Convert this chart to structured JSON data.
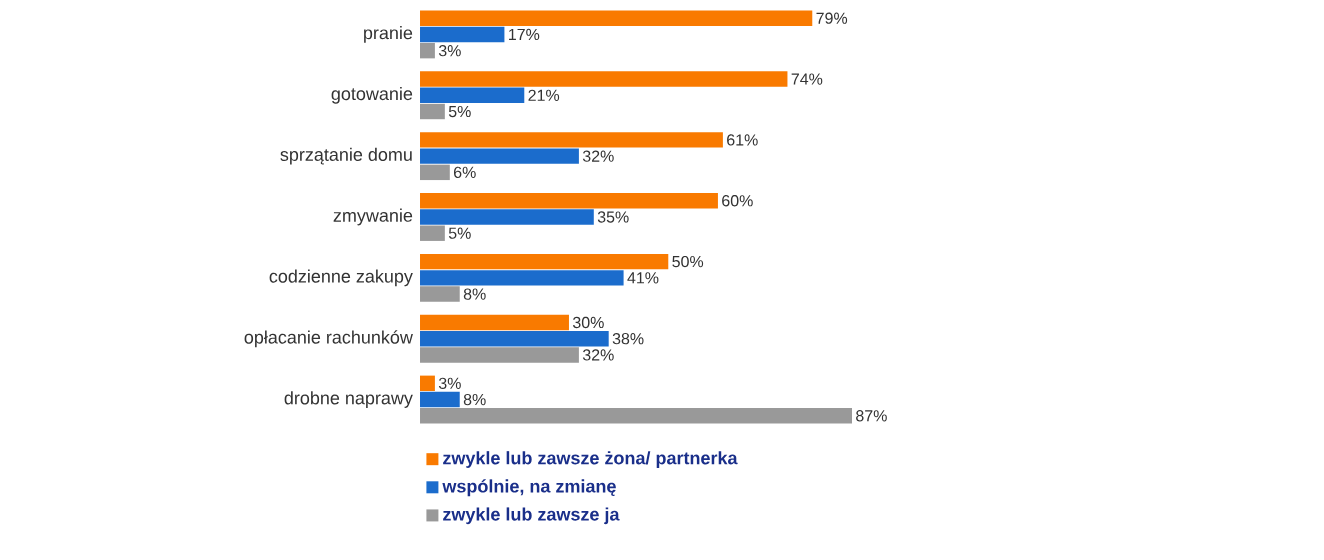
{
  "chart_data": {
    "type": "bar",
    "orientation": "horizontal",
    "categories": [
      "pranie",
      "gotowanie",
      "sprzątanie domu",
      "zmywanie",
      "codzienne zakupy",
      "opłacanie rachunków",
      "drobne naprawy"
    ],
    "series": [
      {
        "name": "zwykle lub zawsze żona/ partnerka",
        "color": "#f97a00",
        "values": [
          79,
          74,
          61,
          60,
          50,
          30,
          3
        ],
        "value_labels": [
          "79%",
          "74%",
          "61%",
          "60%",
          "50%",
          "30%",
          "3%"
        ]
      },
      {
        "name": "wspólnie, na zmianę",
        "color": "#1b6ccc",
        "values": [
          17,
          21,
          32,
          35,
          41,
          38,
          8
        ],
        "value_labels": [
          "17%",
          "21%",
          "32%",
          "35%",
          "41%",
          "38%",
          "8%"
        ]
      },
      {
        "name": "zwykle lub zawsze ja",
        "color": "#999999",
        "values": [
          3,
          5,
          6,
          5,
          8,
          32,
          87
        ],
        "value_labels": [
          "3%",
          "5%",
          "6%",
          "5%",
          "8%",
          "32%",
          "87%"
        ]
      }
    ],
    "tick_labels": "y",
    "legend": "bottom left"
  }
}
